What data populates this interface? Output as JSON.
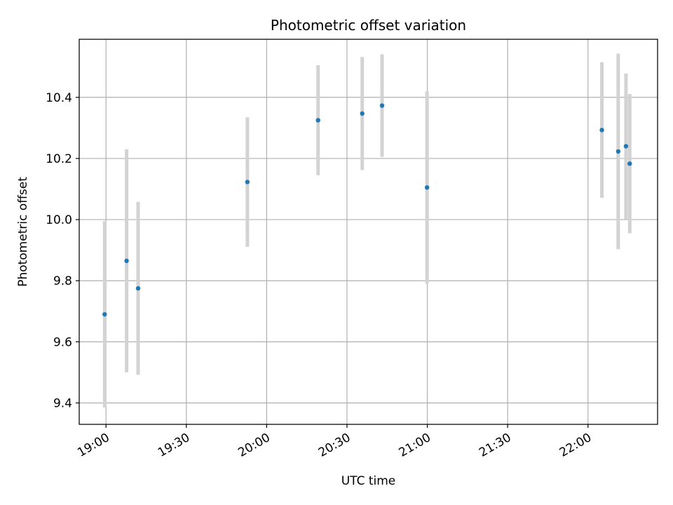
{
  "chart_data": {
    "type": "scatter",
    "title": "Photometric offset variation",
    "xlabel": "UTC time",
    "ylabel": "Photometric offset",
    "xlim": [
      "18:50",
      "22:26"
    ],
    "ylim": [
      9.33,
      10.59
    ],
    "xticks": [
      "19:00",
      "19:30",
      "20:00",
      "20:30",
      "21:00",
      "21:30",
      "22:00"
    ],
    "yticks": [
      9.4,
      9.6,
      9.8,
      10.0,
      10.2,
      10.4
    ],
    "ytick_labels": [
      "9.4",
      "9.6",
      "9.8",
      "10.0",
      "10.2",
      "10.4"
    ],
    "grid": true,
    "marker_color": "#1f77b4",
    "errorbar_color": "#d3d3d3",
    "points": [
      {
        "time": "18:59.5",
        "y": 9.69,
        "err": 0.305
      },
      {
        "time": "19:07.7",
        "y": 9.865,
        "err": 0.365
      },
      {
        "time": "19:12.0",
        "y": 9.775,
        "err": 0.283
      },
      {
        "time": "19:52.8",
        "y": 10.123,
        "err": 0.212
      },
      {
        "time": "20:19.2",
        "y": 10.325,
        "err": 0.18
      },
      {
        "time": "20:35.7",
        "y": 10.347,
        "err": 0.185
      },
      {
        "time": "20:43.1",
        "y": 10.373,
        "err": 0.168
      },
      {
        "time": "20:59.9",
        "y": 10.105,
        "err": 0.315
      },
      {
        "time": "22:05.2",
        "y": 10.293,
        "err": 0.222
      },
      {
        "time": "22:11.3",
        "y": 10.223,
        "err": 0.32
      },
      {
        "time": "22:14.2",
        "y": 10.24,
        "err": 0.238
      },
      {
        "time": "22:15.6",
        "y": 10.183,
        "err": 0.228
      }
    ]
  }
}
